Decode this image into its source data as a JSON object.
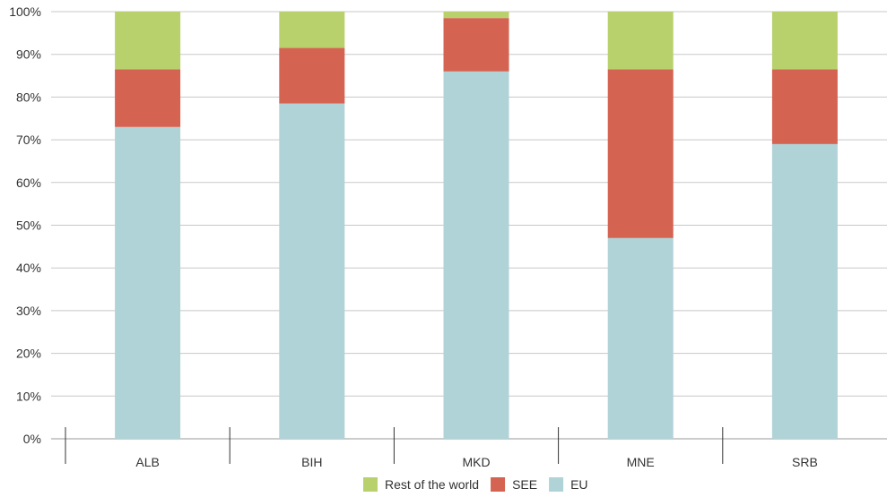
{
  "chart_data": {
    "type": "bar",
    "stacked": true,
    "categories": [
      "ALB",
      "BIH",
      "MKD",
      "MNE",
      "SRB"
    ],
    "series": [
      {
        "name": "EU",
        "color": "#B0D3D8",
        "values": [
          73,
          78.5,
          86,
          47,
          69
        ]
      },
      {
        "name": "SEE",
        "color": "#D46352",
        "values": [
          13.5,
          13,
          12.5,
          39.5,
          17.5
        ]
      },
      {
        "name": "Rest of the world",
        "color": "#B8D16C",
        "values": [
          13.5,
          8.5,
          1.5,
          13.5,
          13.5
        ]
      }
    ],
    "y_ticks": [
      "0%",
      "10%",
      "20%",
      "30%",
      "40%",
      "50%",
      "60%",
      "70%",
      "80%",
      "90%",
      "100%"
    ],
    "ylim": [
      0,
      100
    ],
    "grid": true,
    "legend_position": "bottom-center",
    "legend_order": [
      "Rest of the world",
      "SEE",
      "EU"
    ]
  }
}
